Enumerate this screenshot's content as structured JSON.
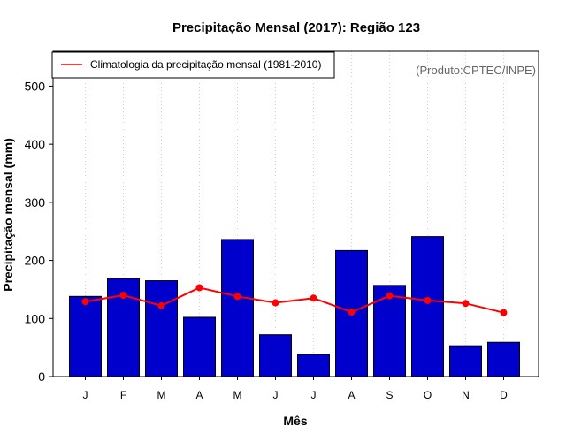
{
  "chart_data": {
    "type": "bar",
    "title": "Precipitação Mensal (2017): Região 123",
    "xlabel": "Mês",
    "ylabel": "Precipitação mensal (mm)",
    "categories": [
      "J",
      "F",
      "M",
      "A",
      "M",
      "J",
      "J",
      "A",
      "S",
      "O",
      "N",
      "D"
    ],
    "ylim": [
      0,
      560
    ],
    "yticks": [
      0,
      100,
      200,
      300,
      400,
      500
    ],
    "grid": "vertical-dotted",
    "series": [
      {
        "name": "Precipitação mensal 2017",
        "kind": "bar",
        "color": "#0000cc",
        "values": [
          138,
          169,
          165,
          102,
          236,
          72,
          38,
          217,
          157,
          241,
          53,
          59
        ]
      },
      {
        "name": "Climatologia da precipitação mensal (1981-2010)",
        "kind": "line",
        "color": "#ff0000",
        "values": [
          129,
          140,
          122,
          153,
          138,
          127,
          135,
          111,
          139,
          131,
          126,
          110
        ]
      }
    ],
    "legend": {
      "position": "top-left",
      "label": "Climatologia da precipitação mensal (1981-2010)"
    },
    "annotation": "(Produto:CPTEC/INPE)"
  },
  "colors": {
    "bar": "#0000cc",
    "line": "#ff0000",
    "grid": "#d3d3d3",
    "annotation": "#666666"
  }
}
